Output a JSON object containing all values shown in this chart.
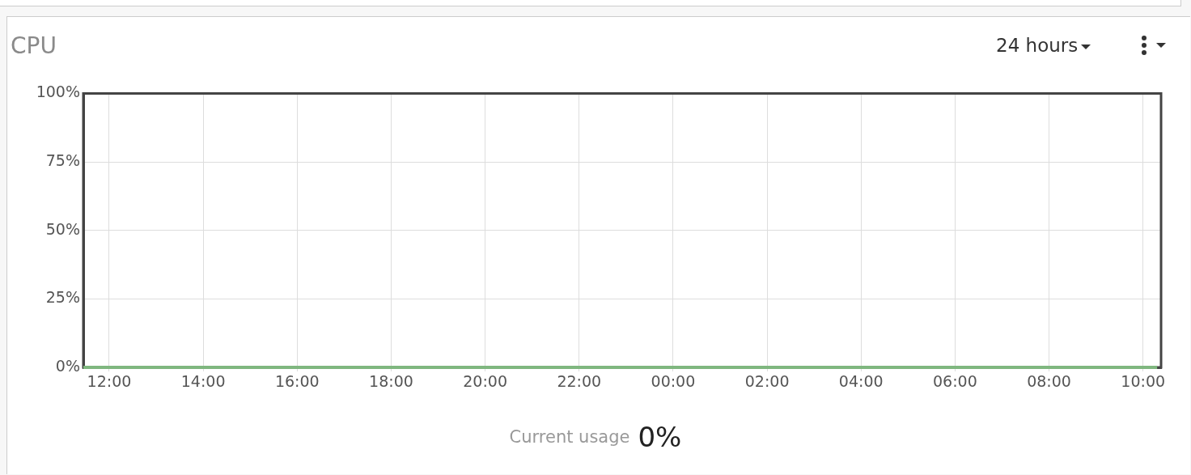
{
  "chart_data": {
    "type": "line",
    "title": "CPU",
    "x": [
      "--01-01T11:27",
      "--01-02T10:18"
    ],
    "series": [
      {
        "color": "#7fb77f",
        "values": [
          0,
          0
        ]
      }
    ],
    "xlim": [
      "--01-01T11:27",
      "--01-02T10:23"
    ],
    "xticks": [
      {
        "value": "--01-01T12:00",
        "label": "12:00"
      },
      {
        "value": "--01-01T14:00",
        "label": "14:00"
      },
      {
        "value": "--01-01T16:00",
        "label": "16:00"
      },
      {
        "value": "--01-01T18:00",
        "label": "18:00"
      },
      {
        "value": "--01-01T20:00",
        "label": "20:00"
      },
      {
        "value": "--01-01T22:00",
        "label": "22:00"
      },
      {
        "value": "--01-02T00:00",
        "label": "00:00"
      },
      {
        "value": "--01-02T02:00",
        "label": "02:00"
      },
      {
        "value": "--01-02T04:00",
        "label": "04:00"
      },
      {
        "value": "--01-02T06:00",
        "label": "06:00"
      },
      {
        "value": "--01-02T08:00",
        "label": "08:00"
      },
      {
        "value": "--01-02T10:00",
        "label": "10:00"
      }
    ],
    "ylim": [
      0,
      100
    ],
    "yticks": [
      {
        "value": 0,
        "label": "0%"
      },
      {
        "value": 25,
        "label": "25%"
      },
      {
        "value": 50,
        "label": "50%"
      },
      {
        "value": 75,
        "label": "75%"
      },
      {
        "value": 100,
        "label": "100%"
      }
    ],
    "grid": true,
    "legend": false,
    "marker": "none",
    "line_style": "solid",
    "annotations": [
      "24 hours",
      "Current usage",
      "0%"
    ]
  }
}
